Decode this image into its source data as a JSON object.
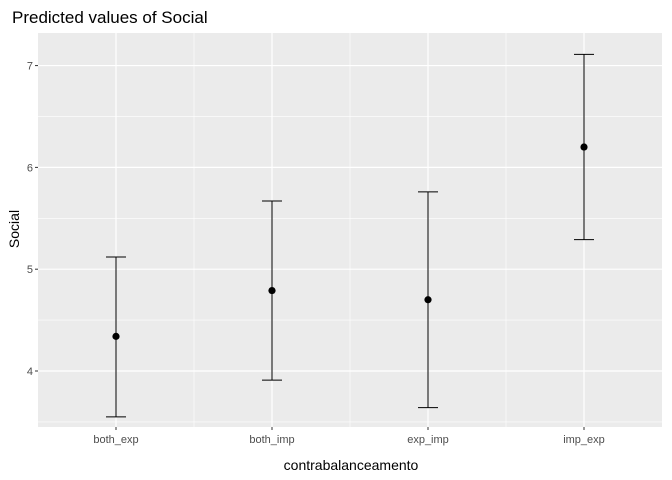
{
  "chart_data": {
    "type": "scatter",
    "title": "Predicted values of Social",
    "xlabel": "contrabalanceamento",
    "ylabel": "Social",
    "categories": [
      "both_exp",
      "both_imp",
      "exp_imp",
      "imp_exp"
    ],
    "points": [
      {
        "category": "both_exp",
        "y": 4.34,
        "lower": 3.55,
        "upper": 5.12
      },
      {
        "category": "both_imp",
        "y": 4.79,
        "lower": 3.91,
        "upper": 5.67
      },
      {
        "category": "exp_imp",
        "y": 4.7,
        "lower": 3.64,
        "upper": 5.76
      },
      {
        "category": "imp_exp",
        "y": 6.2,
        "lower": 5.29,
        "upper": 7.11
      }
    ],
    "ylim": [
      3.45,
      7.32
    ],
    "yticks": [
      4,
      5,
      6,
      7
    ],
    "grid": true,
    "legend": "none",
    "colors": {
      "panel": "#ebebeb",
      "grid": "#ffffff",
      "point": "#000000",
      "errorbar": "#000000"
    }
  }
}
